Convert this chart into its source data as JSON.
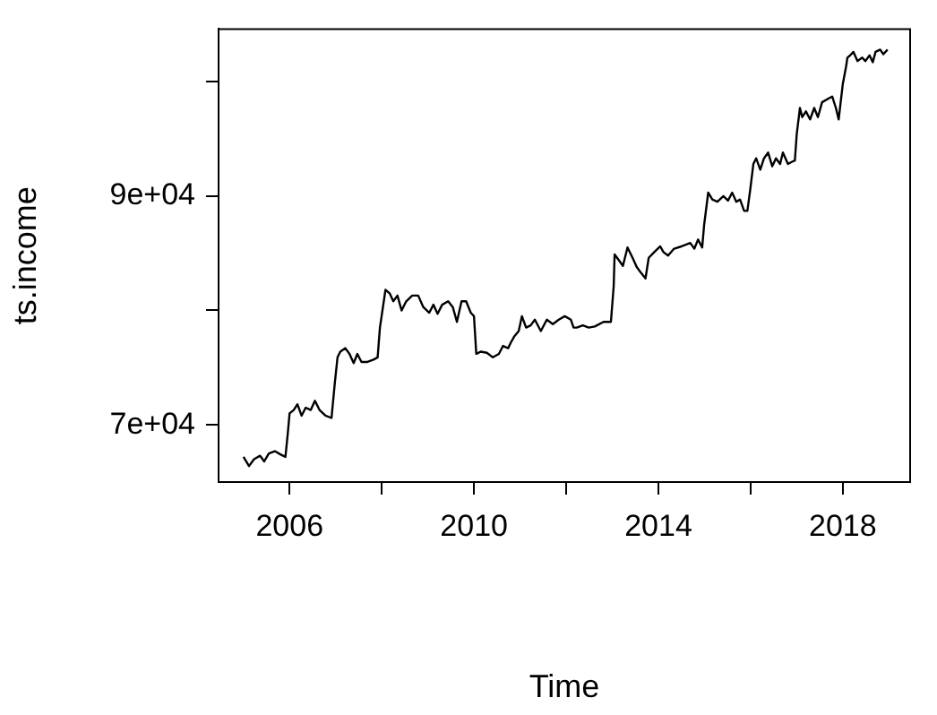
{
  "chart_data": {
    "type": "line",
    "xlabel": "Time",
    "ylabel": "ts.income",
    "marker": "none",
    "line_style": "solid",
    "xlim": [
      2004.46,
      2019.46
    ],
    "ylim": [
      65000,
      104600
    ],
    "xticks": [
      2006,
      {
        "value": 2008,
        "label": null
      },
      2010,
      {
        "value": 2012,
        "label": null
      },
      2014,
      {
        "value": 2016,
        "label": null
      },
      2018
    ],
    "yticks": [
      {
        "value": 70000,
        "label": "7e+04"
      },
      {
        "value": 80000,
        "label": null
      },
      {
        "value": 90000,
        "label": "9e+04"
      },
      {
        "value": 100000,
        "label": null
      }
    ],
    "series": [
      {
        "color": "#000000",
        "x": [
          2005.0,
          2005.12,
          2005.23,
          2005.36,
          2005.45,
          2005.55,
          2005.68,
          2005.81,
          2005.91,
          2005.96,
          2006.0,
          2006.09,
          2006.17,
          2006.26,
          2006.35,
          2006.46,
          2006.55,
          2006.65,
          2006.78,
          2006.91,
          2006.98,
          2007.04,
          2007.1,
          2007.21,
          2007.3,
          2007.39,
          2007.47,
          2007.56,
          2007.69,
          2007.82,
          2007.91,
          2007.96,
          2008.08,
          2008.17,
          2008.25,
          2008.34,
          2008.43,
          2008.53,
          2008.66,
          2008.79,
          2008.9,
          2009.03,
          2009.12,
          2009.21,
          2009.31,
          2009.44,
          2009.54,
          2009.63,
          2009.73,
          2009.83,
          2009.93,
          2010.0,
          2010.05,
          2010.15,
          2010.28,
          2010.41,
          2010.54,
          2010.63,
          2010.74,
          2010.8,
          2010.87,
          2010.97,
          2011.04,
          2011.13,
          2011.23,
          2011.32,
          2011.45,
          2011.58,
          2011.71,
          2011.84,
          2011.97,
          2012.1,
          2012.16,
          2012.23,
          2012.36,
          2012.49,
          2012.62,
          2012.81,
          2012.97,
          2013.03,
          2013.05,
          2013.14,
          2013.23,
          2013.33,
          2013.44,
          2013.53,
          2013.62,
          2013.72,
          2013.79,
          2013.91,
          2014.04,
          2014.11,
          2014.21,
          2014.34,
          2014.5,
          2014.69,
          2014.78,
          2014.86,
          2014.95,
          2014.99,
          2015.08,
          2015.17,
          2015.28,
          2015.41,
          2015.51,
          2015.6,
          2015.69,
          2015.77,
          2015.86,
          2015.93,
          2015.99,
          2016.06,
          2016.12,
          2016.21,
          2016.29,
          2016.38,
          2016.47,
          2016.55,
          2016.64,
          2016.7,
          2016.81,
          2016.9,
          2016.96,
          2017.0,
          2017.07,
          2017.12,
          2017.2,
          2017.29,
          2017.38,
          2017.46,
          2017.55,
          2017.68,
          2017.77,
          2017.85,
          2017.91,
          2018.0,
          2018.07,
          2018.1,
          2018.16,
          2018.23,
          2018.32,
          2018.42,
          2018.49,
          2018.58,
          2018.65,
          2018.71,
          2018.81,
          2018.88,
          2018.97
        ],
        "values": [
          67200,
          66400,
          67000,
          67300,
          66800,
          67500,
          67700,
          67400,
          67200,
          69200,
          71000,
          71300,
          71800,
          70800,
          71500,
          71300,
          72100,
          71300,
          70800,
          70600,
          73600,
          75900,
          76400,
          76700,
          76200,
          75400,
          76200,
          75500,
          75500,
          75700,
          75900,
          78500,
          81800,
          81500,
          80800,
          81300,
          80000,
          80800,
          81300,
          81300,
          80300,
          79800,
          80500,
          79700,
          80500,
          80800,
          80300,
          79000,
          80800,
          80800,
          79800,
          79500,
          76200,
          76400,
          76300,
          75900,
          76200,
          76900,
          76700,
          77200,
          77700,
          78200,
          79500,
          78500,
          78700,
          79200,
          78200,
          79200,
          78800,
          79200,
          79500,
          79200,
          78500,
          78500,
          78700,
          78500,
          78600,
          79000,
          79000,
          82100,
          84900,
          84400,
          83900,
          85500,
          84600,
          83800,
          83300,
          82800,
          84600,
          85100,
          85600,
          85100,
          84800,
          85400,
          85600,
          85900,
          85400,
          86200,
          85500,
          87400,
          90300,
          89700,
          89500,
          90000,
          89600,
          90300,
          89500,
          89700,
          88700,
          88700,
          90500,
          92800,
          93300,
          92300,
          93300,
          93800,
          92600,
          93300,
          92800,
          93800,
          92800,
          93000,
          93100,
          95400,
          97700,
          96900,
          97400,
          96700,
          97700,
          96900,
          98200,
          98500,
          98700,
          97700,
          96700,
          99800,
          101300,
          102100,
          102300,
          102600,
          101800,
          102100,
          101800,
          102300,
          101700,
          102600,
          102800,
          102400,
          102800
        ]
      }
    ]
  }
}
